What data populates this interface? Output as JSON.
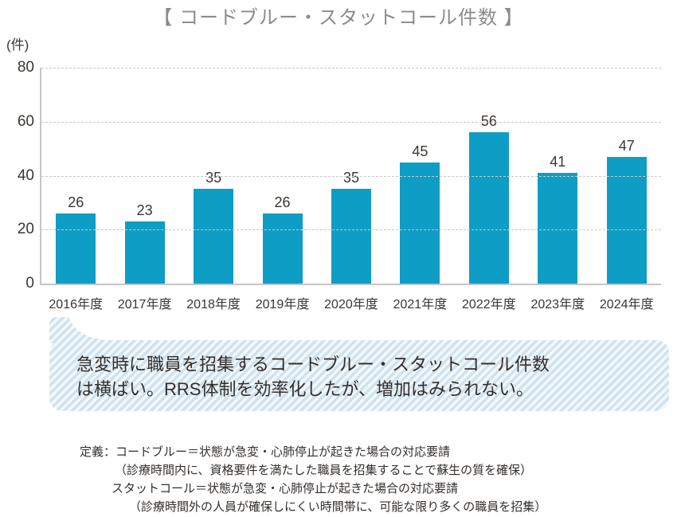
{
  "title": "【 コードブルー・スタットコール件数 】",
  "unit_label": "(件)",
  "chart_data": {
    "type": "bar",
    "title": "コードブルー・スタットコール件数",
    "categories": [
      "2016年度",
      "2017年度",
      "2018年度",
      "2019年度",
      "2020年度",
      "2021年度",
      "2022年度",
      "2023年度",
      "2024年度"
    ],
    "values": [
      26,
      23,
      35,
      26,
      35,
      45,
      56,
      41,
      47
    ],
    "xlabel": "",
    "ylabel": "(件)",
    "ylim": [
      0,
      80
    ],
    "yticks": [
      0,
      20,
      40,
      60,
      80
    ],
    "grid": "horizontal-dashed",
    "legend": "none",
    "bar_color": "#0d9dc5"
  },
  "callout": {
    "lines": [
      "急変時に職員を招集するコードブルー・スタットコール件数",
      "は横ばい。RRS体制を効率化したが、増加はみられない。"
    ]
  },
  "definitions": {
    "lines": [
      "定義：コードブルー＝状態が急変・心肺停止が起きた場合の対応要請",
      "（診療時間内に、資格要件を満たした職員を招集することで蘇生の質を確保）",
      "スタットコール＝状態が急変・心肺停止が起きた場合の対応要請",
      "（診療時間外の人員が確保しにくい時間帯に、可能な限り多くの職員を招集）"
    ]
  },
  "colors": {
    "bar": "#0d9dc5",
    "title_gray": "#8b8b8b",
    "axis_gray": "#c5c5c5",
    "grid_gray": "#c9c9c9",
    "text_dark": "#332f2c",
    "stripe_blue": "#cfe2ef",
    "stripe_light": "#f3f8fb"
  }
}
